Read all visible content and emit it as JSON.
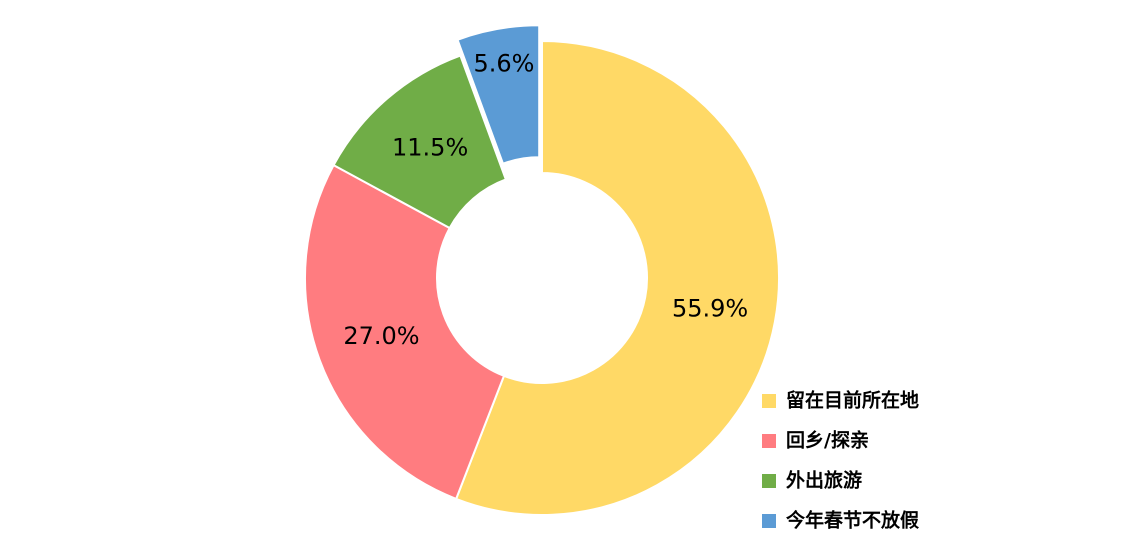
{
  "chart_data": {
    "type": "donut",
    "categories": [
      "留在目前所在地",
      "回乡/探亲",
      "外出旅游",
      "今年春节不放假"
    ],
    "values": [
      55.9,
      27.0,
      11.5,
      5.6
    ],
    "value_labels": [
      "55.9%",
      "27.0%",
      "11.5%",
      "5.6%"
    ],
    "colors": [
      "#ffd966",
      "#ff7c80",
      "#70ad47",
      "#5b9bd5"
    ],
    "legend": "bottom-right"
  }
}
